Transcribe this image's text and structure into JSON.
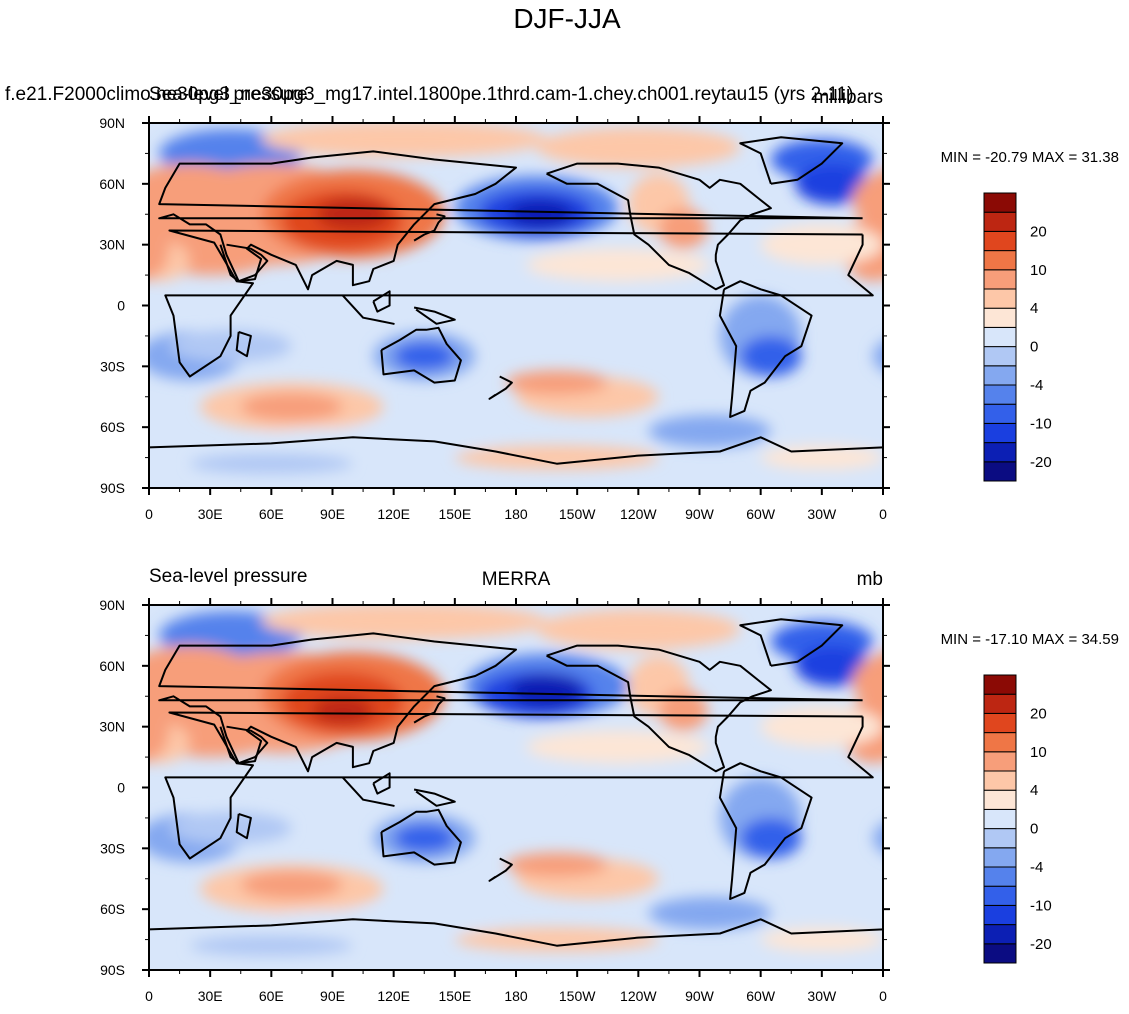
{
  "figure": {
    "title": "DJF-JJA"
  },
  "colors": {
    "levels": [
      "#0b0c82",
      "#0c1fb4",
      "#1a3fe0",
      "#3360ea",
      "#5582ec",
      "#84a8f0",
      "#b0c8f4",
      "#d8e6fa",
      "#fde6d6",
      "#fdc7a8",
      "#f79e7a",
      "#ef7646",
      "#e0461e",
      "#bd2612",
      "#8b0a05"
    ],
    "land_outline": "#000000",
    "frame": "#000000"
  },
  "colorbar": {
    "tick_labels": [
      "20",
      "10",
      "4",
      "0",
      "-4",
      "-10",
      "-20"
    ]
  },
  "axes": {
    "lat_labels": [
      "90N",
      "60N",
      "30N",
      "0",
      "30S",
      "60S",
      "90S"
    ],
    "lon_labels": [
      "0",
      "30E",
      "60E",
      "90E",
      "120E",
      "150E",
      "180",
      "150W",
      "120W",
      "90W",
      "60W",
      "30W",
      "0"
    ]
  },
  "panels": [
    {
      "left_title": "f.e21.F2000climo.ne30pg3_ne30pg3_mg17.intel.1800pe.1thrd.cam-1.chey.ch001.reytau15 (yrs 2-11)",
      "overlay_title": "Sea-level pressure",
      "center_title": "",
      "right_title": "millibars",
      "stats": "MIN = -20.79 MAX =  31.38"
    },
    {
      "left_title": "Sea-level pressure",
      "overlay_title": "",
      "center_title": "MERRA",
      "right_title": "mb",
      "stats": "MIN = -17.10 MAX =  34.59"
    }
  ]
}
